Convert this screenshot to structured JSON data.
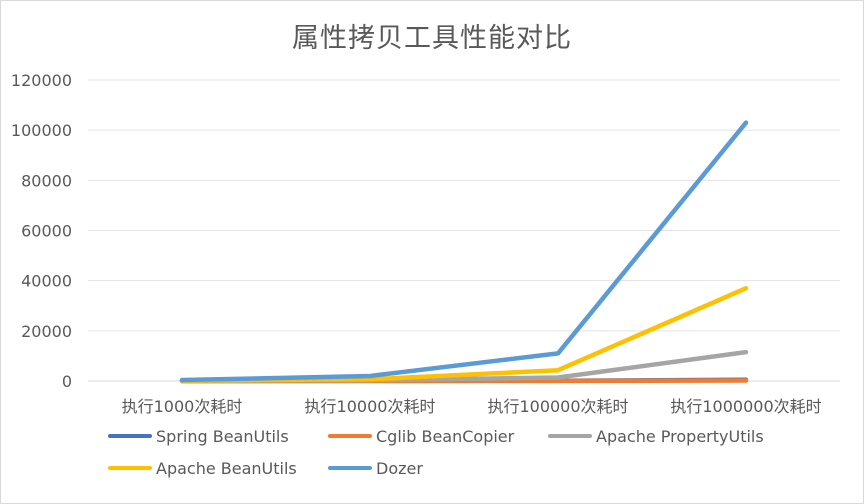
{
  "chart_data": {
    "type": "line",
    "title": "属性拷贝工具性能对比",
    "xlabel": "",
    "ylabel": "",
    "categories": [
      "执行1000次耗时",
      "执行10000次耗时",
      "执行100000次耗时",
      "执行1000000次耗时"
    ],
    "ylim": [
      0,
      120000
    ],
    "yticks": [
      0,
      20000,
      40000,
      60000,
      80000,
      100000,
      120000
    ],
    "grid": true,
    "legend_position": "bottom",
    "series": [
      {
        "name": "Spring BeanUtils",
        "color": "#4472c4",
        "values": [
          5,
          30,
          100,
          500
        ]
      },
      {
        "name": "Cglib BeanCopier",
        "color": "#ed7d31",
        "values": [
          3,
          10,
          50,
          200
        ]
      },
      {
        "name": "Apache PropertyUtils",
        "color": "#a5a5a5",
        "values": [
          100,
          300,
          1400,
          11500
        ]
      },
      {
        "name": "Apache BeanUtils",
        "color": "#ffc000",
        "values": [
          150,
          700,
          4300,
          37000
        ]
      },
      {
        "name": "Dozer",
        "color": "#5b9bd5",
        "values": [
          400,
          2000,
          11000,
          103000
        ]
      }
    ]
  }
}
